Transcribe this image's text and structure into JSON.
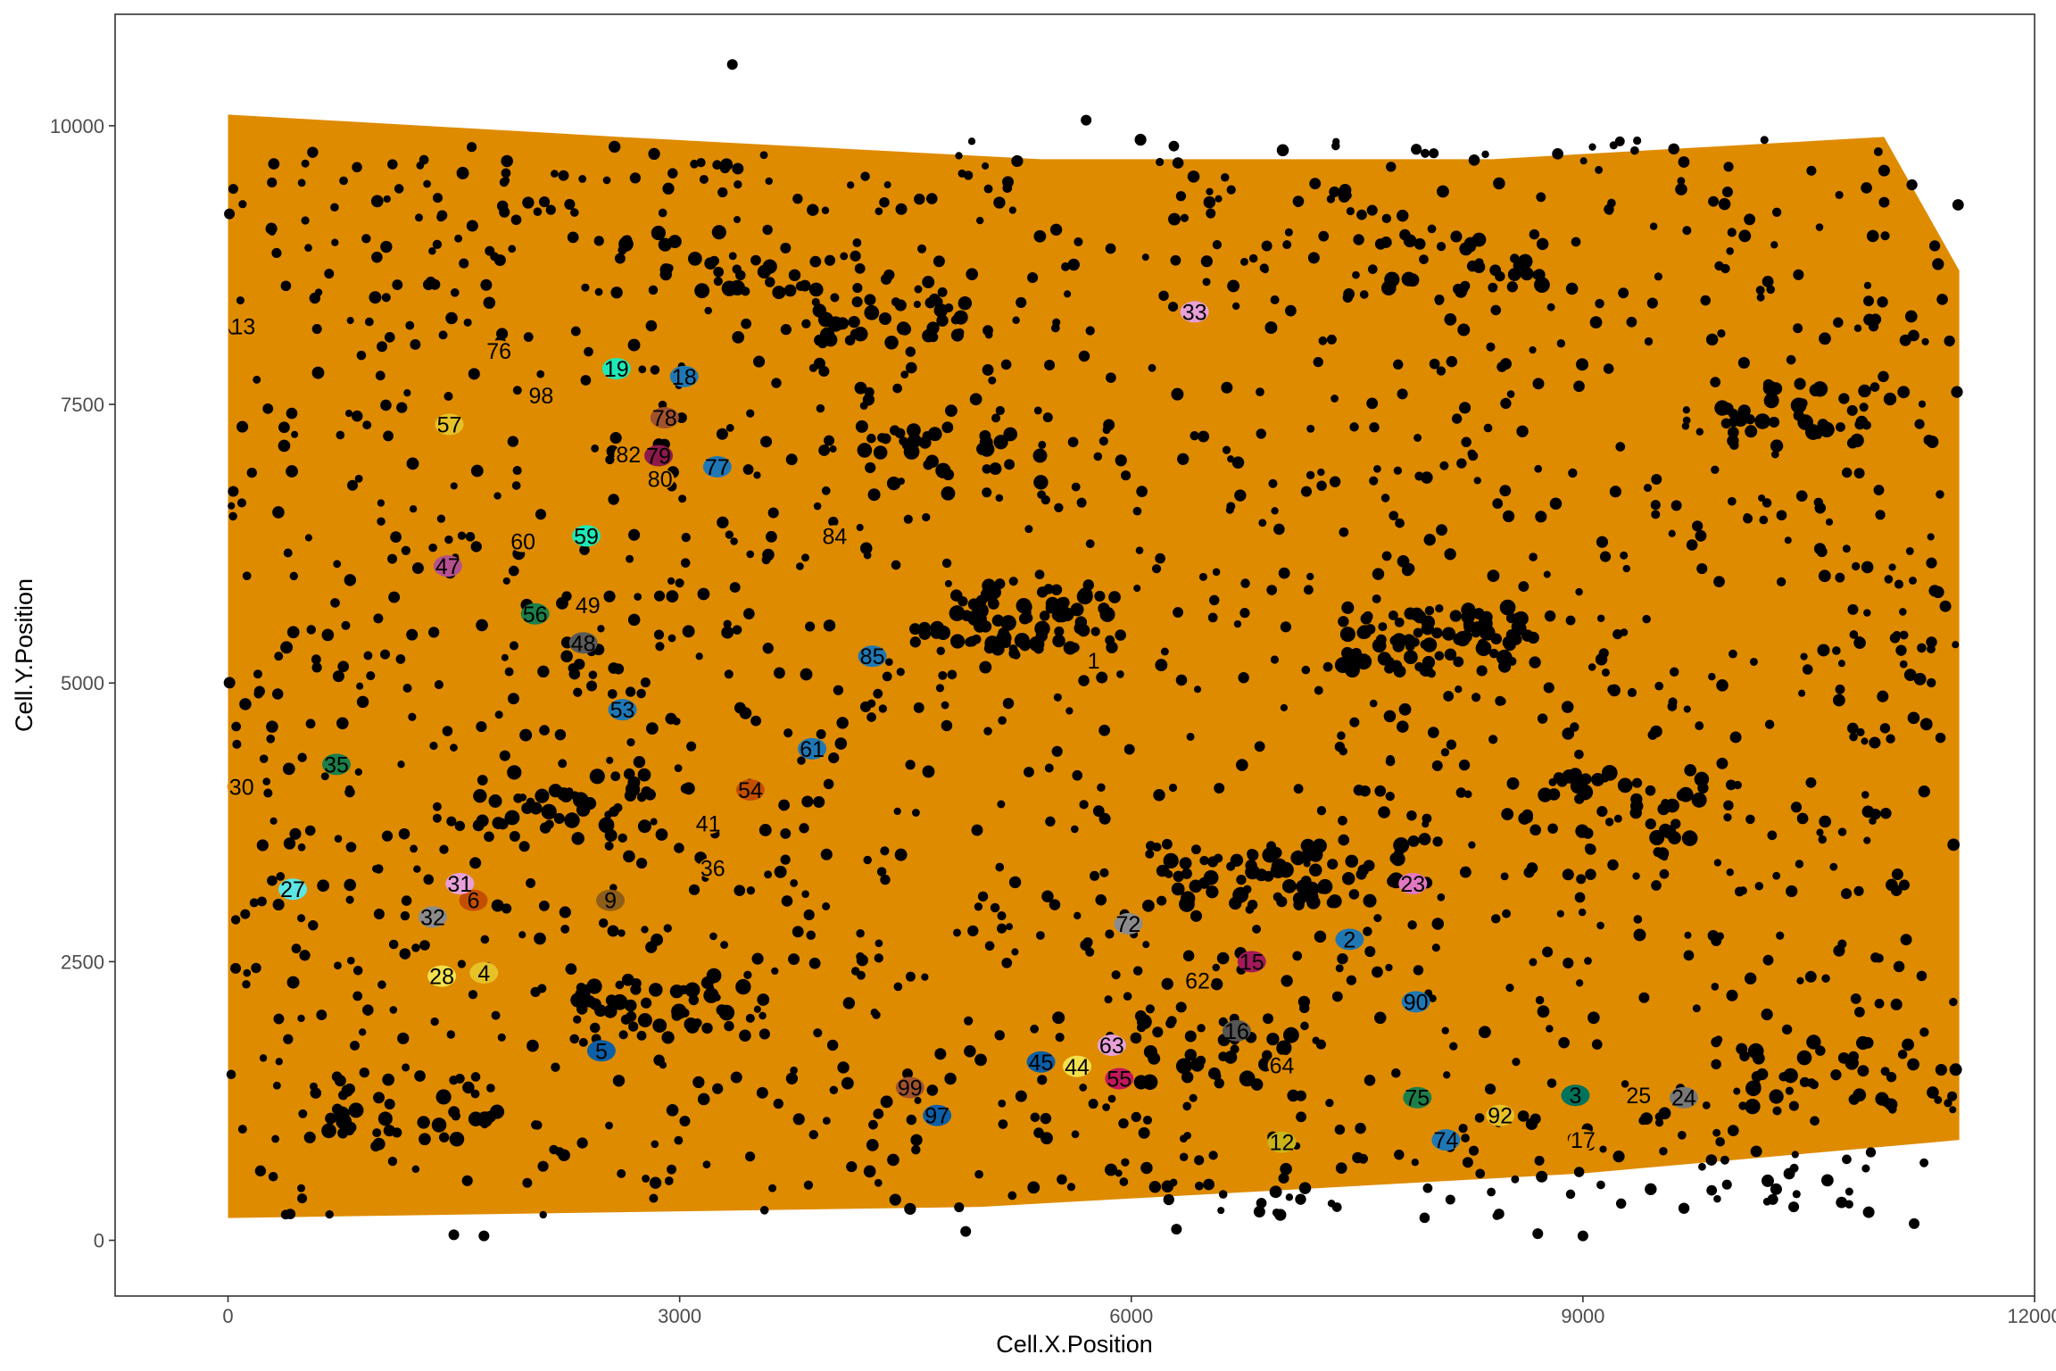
{
  "chart_data": {
    "type": "scatter",
    "title": "",
    "xlabel": "Cell.X.Position",
    "ylabel": "Cell.Y.Position",
    "xlim": [
      -750,
      12000
    ],
    "ylim": [
      -500,
      11000
    ],
    "x_ticks": [
      0,
      3000,
      6000,
      9000,
      12000
    ],
    "x_tick_labels": [
      "0",
      "3000",
      "6000",
      "9000",
      "12000"
    ],
    "y_ticks": [
      0,
      2500,
      5000,
      7500,
      10000
    ],
    "y_tick_labels": [
      "0",
      "2500",
      "5000",
      "7500",
      "10000"
    ],
    "grid": false,
    "legend": "none",
    "background_color": "#DF8B00",
    "outlier_color": "#000000",
    "tissue_region": [
      [
        0,
        10100
      ],
      [
        2600,
        9900
      ],
      [
        5400,
        9700
      ],
      [
        8400,
        9700
      ],
      [
        11000,
        9900
      ],
      [
        11500,
        8700
      ],
      [
        11500,
        900
      ],
      [
        9000,
        600
      ],
      [
        5000,
        300
      ],
      [
        0,
        200
      ]
    ],
    "clusters": [
      {
        "label": "1",
        "x": 5750,
        "y": 5200,
        "color": "#DF8B00"
      },
      {
        "label": "2",
        "x": 7450,
        "y": 2700,
        "color": "#1F78B4"
      },
      {
        "label": "3",
        "x": 8950,
        "y": 1300,
        "color": "#00735C"
      },
      {
        "label": "4",
        "x": 1700,
        "y": 2400,
        "color": "#E6C229"
      },
      {
        "label": "5",
        "x": 2480,
        "y": 1700,
        "color": "#0D5FA6"
      },
      {
        "label": "6",
        "x": 1630,
        "y": 3050,
        "color": "#C44E00"
      },
      {
        "label": "9",
        "x": 2540,
        "y": 3050,
        "color": "#8C5E1A"
      },
      {
        "label": "12",
        "x": 7000,
        "y": 880,
        "color": "#C9B51A"
      },
      {
        "label": "13",
        "x": 100,
        "y": 8200,
        "color": "#DF8B00"
      },
      {
        "label": "15",
        "x": 6800,
        "y": 2500,
        "color": "#A3195B"
      },
      {
        "label": "16",
        "x": 6700,
        "y": 1880,
        "color": "#555555"
      },
      {
        "label": "17",
        "x": 9000,
        "y": 900,
        "color": "#DF8B00"
      },
      {
        "label": "18",
        "x": 3030,
        "y": 7750,
        "color": "#1F78B4"
      },
      {
        "label": "19",
        "x": 2580,
        "y": 7820,
        "color": "#1DE9B6"
      },
      {
        "label": "23",
        "x": 7870,
        "y": 3200,
        "color": "#E377C2"
      },
      {
        "label": "24",
        "x": 9670,
        "y": 1280,
        "color": "#777777"
      },
      {
        "label": "25",
        "x": 9370,
        "y": 1300,
        "color": "#DF8B00"
      },
      {
        "label": "27",
        "x": 430,
        "y": 3150,
        "color": "#5CE6E6"
      },
      {
        "label": "28",
        "x": 1420,
        "y": 2370,
        "color": "#F2E14C"
      },
      {
        "label": "30",
        "x": 90,
        "y": 4070,
        "color": "#DF8B00"
      },
      {
        "label": "31",
        "x": 1540,
        "y": 3200,
        "color": "#E7A0D8"
      },
      {
        "label": "32",
        "x": 1360,
        "y": 2900,
        "color": "#8C8C8C"
      },
      {
        "label": "33",
        "x": 6420,
        "y": 8330,
        "color": "#E7A0D8"
      },
      {
        "label": "35",
        "x": 720,
        "y": 4270,
        "color": "#1B7F4A"
      },
      {
        "label": "36",
        "x": 3220,
        "y": 3340,
        "color": "#DF8B00"
      },
      {
        "label": "41",
        "x": 3190,
        "y": 3740,
        "color": "#DF8B00"
      },
      {
        "label": "44",
        "x": 5640,
        "y": 1560,
        "color": "#F2E14C"
      },
      {
        "label": "45",
        "x": 5400,
        "y": 1600,
        "color": "#0D5FA6"
      },
      {
        "label": "47",
        "x": 1460,
        "y": 6050,
        "color": "#B5508F"
      },
      {
        "label": "48",
        "x": 2360,
        "y": 5360,
        "color": "#5A5A5A"
      },
      {
        "label": "49",
        "x": 2390,
        "y": 5700,
        "color": "#DF8B00"
      },
      {
        "label": "53",
        "x": 2620,
        "y": 4760,
        "color": "#1F78B4"
      },
      {
        "label": "54",
        "x": 3470,
        "y": 4040,
        "color": "#C44E00"
      },
      {
        "label": "55",
        "x": 5920,
        "y": 1450,
        "color": "#C2185B"
      },
      {
        "label": "56",
        "x": 2040,
        "y": 5620,
        "color": "#1B7F4A"
      },
      {
        "label": "57",
        "x": 1470,
        "y": 7320,
        "color": "#E6C229"
      },
      {
        "label": "59",
        "x": 2380,
        "y": 6320,
        "color": "#1DE9B6"
      },
      {
        "label": "60",
        "x": 1960,
        "y": 6270,
        "color": "#DF8B00"
      },
      {
        "label": "61",
        "x": 3880,
        "y": 4410,
        "color": "#1F78B4"
      },
      {
        "label": "62",
        "x": 6440,
        "y": 2330,
        "color": "#DF8B00"
      },
      {
        "label": "63",
        "x": 5870,
        "y": 1750,
        "color": "#E7A0D8"
      },
      {
        "label": "64",
        "x": 7000,
        "y": 1570,
        "color": "#DF8B00"
      },
      {
        "label": "72",
        "x": 5980,
        "y": 2840,
        "color": "#8C8C8C"
      },
      {
        "label": "74",
        "x": 8090,
        "y": 900,
        "color": "#1F78B4"
      },
      {
        "label": "75",
        "x": 7900,
        "y": 1280,
        "color": "#1B7F4A"
      },
      {
        "label": "76",
        "x": 1800,
        "y": 7980,
        "color": "#DF8B00"
      },
      {
        "label": "77",
        "x": 3250,
        "y": 6940,
        "color": "#1F78B4"
      },
      {
        "label": "78",
        "x": 2900,
        "y": 7380,
        "color": "#A0522D"
      },
      {
        "label": "79",
        "x": 2860,
        "y": 7040,
        "color": "#8B1A4B"
      },
      {
        "label": "80",
        "x": 2870,
        "y": 6830,
        "color": "#DF8B00"
      },
      {
        "label": "82",
        "x": 2660,
        "y": 7050,
        "color": "#DF8B00"
      },
      {
        "label": "84",
        "x": 4030,
        "y": 6320,
        "color": "#DF8B00"
      },
      {
        "label": "85",
        "x": 4280,
        "y": 5240,
        "color": "#1F78B4"
      },
      {
        "label": "90",
        "x": 7890,
        "y": 2140,
        "color": "#1F78B4"
      },
      {
        "label": "92",
        "x": 8450,
        "y": 1120,
        "color": "#E6C229"
      },
      {
        "label": "97",
        "x": 4710,
        "y": 1120,
        "color": "#0D5FA6"
      },
      {
        "label": "98",
        "x": 2080,
        "y": 7580,
        "color": "#DF8B00"
      },
      {
        "label": "99",
        "x": 4530,
        "y": 1370,
        "color": "#A0522D"
      }
    ]
  }
}
